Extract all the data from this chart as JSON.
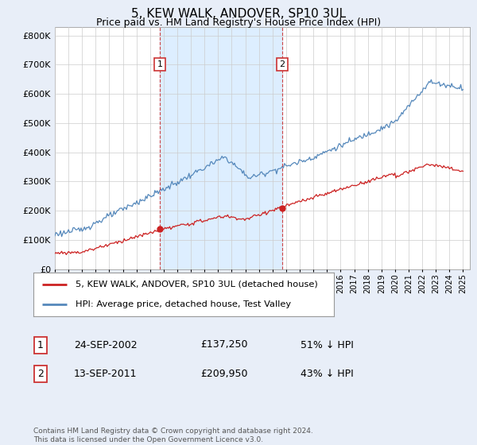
{
  "title": "5, KEW WALK, ANDOVER, SP10 3UL",
  "subtitle": "Price paid vs. HM Land Registry's House Price Index (HPI)",
  "ylim": [
    0,
    830000
  ],
  "yticks": [
    0,
    100000,
    200000,
    300000,
    400000,
    500000,
    600000,
    700000,
    800000
  ],
  "xlim_start": 1995,
  "xlim_end": 2025.5,
  "hpi_color": "#5588bb",
  "price_color": "#cc2222",
  "vline_color": "#cc3333",
  "grid_color": "#cccccc",
  "background_color": "#e8eef8",
  "plot_bg_color": "#ffffff",
  "shade_color": "#ddeeff",
  "sale1_x": 2002.73,
  "sale1_y": 137250,
  "sale1_label": "1",
  "sale2_x": 2011.71,
  "sale2_y": 209950,
  "sale2_label": "2",
  "legend_line1": "5, KEW WALK, ANDOVER, SP10 3UL (detached house)",
  "legend_line2": "HPI: Average price, detached house, Test Valley",
  "table_row1_num": "1",
  "table_row1_date": "24-SEP-2002",
  "table_row1_price": "£137,250",
  "table_row1_hpi": "51% ↓ HPI",
  "table_row2_num": "2",
  "table_row2_date": "13-SEP-2011",
  "table_row2_price": "£209,950",
  "table_row2_hpi": "43% ↓ HPI",
  "footer": "Contains HM Land Registry data © Crown copyright and database right 2024.\nThis data is licensed under the Open Government Licence v3.0.",
  "title_fontsize": 11,
  "subtitle_fontsize": 9,
  "tick_fontsize": 8,
  "label_fontsize": 8
}
